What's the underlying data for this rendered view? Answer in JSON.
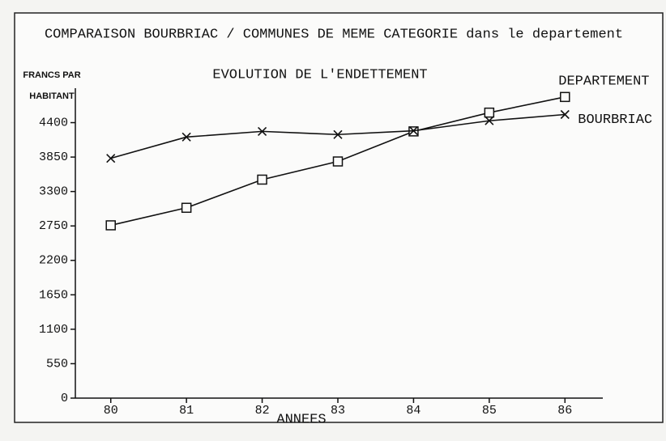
{
  "chart_data": {
    "type": "line",
    "title": "COMPARAISON BOURBRIAC / COMMUNES DE MEME CATEGORIE dans le departement",
    "subtitle": "EVOLUTION DE L'ENDETTEMENT",
    "y_label": "FRANCS PAR HABITANT",
    "x_label": "ANNEES",
    "x": [
      80,
      81,
      82,
      83,
      84,
      85,
      86
    ],
    "xlim": [
      79.5,
      86.5
    ],
    "xticks": [
      80,
      81,
      82,
      83,
      84,
      85,
      86
    ],
    "ylim": [
      0,
      4950
    ],
    "yticks": [
      0,
      550,
      1100,
      1650,
      2200,
      2750,
      3300,
      3850,
      4400
    ],
    "grid": false,
    "series": [
      {
        "name": "DEPARTEMENT",
        "color": "#111111",
        "marker": "square",
        "values": [
          2760,
          3040,
          3490,
          3780,
          4260,
          4560,
          4810
        ]
      },
      {
        "name": "BOURBRIAC",
        "color": "#111111",
        "marker": "x",
        "values": [
          3830,
          4170,
          4260,
          4210,
          4270,
          4430,
          4530
        ]
      }
    ]
  }
}
